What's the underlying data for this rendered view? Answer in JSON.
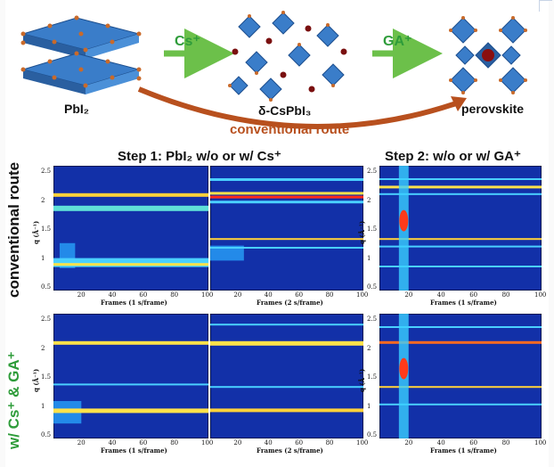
{
  "labels": {
    "pbi2": "PbI₂",
    "delta": "δ-CsPbI₃",
    "perovskite": "perovskite",
    "cs_arrow": "Cs⁺",
    "ga_arrow": "GA⁺",
    "route": "conventional route"
  },
  "headers": {
    "step1": "Step 1: PbI₂ w/o or w/ Cs⁺",
    "step2": "Step 2: w/o or w/ GA⁺"
  },
  "rows": {
    "top": "conventional route",
    "bottom": "w/ Cs⁺ & GA⁺"
  },
  "axes": {
    "ylabel": "q (Å⁻¹)",
    "x1": "Frames (1 s/frame)",
    "x2": "Frames (2 s/frame)",
    "yticks": [
      "2.5",
      "2",
      "1.5",
      "1",
      "0.5"
    ],
    "xticks": [
      "20",
      "40",
      "60",
      "80",
      "100"
    ]
  },
  "colors": {
    "green": "#2e9c3a",
    "route_arrow": "#b8501e",
    "octahedron": "#3a7dc9",
    "map_bg": "#1230a8"
  }
}
